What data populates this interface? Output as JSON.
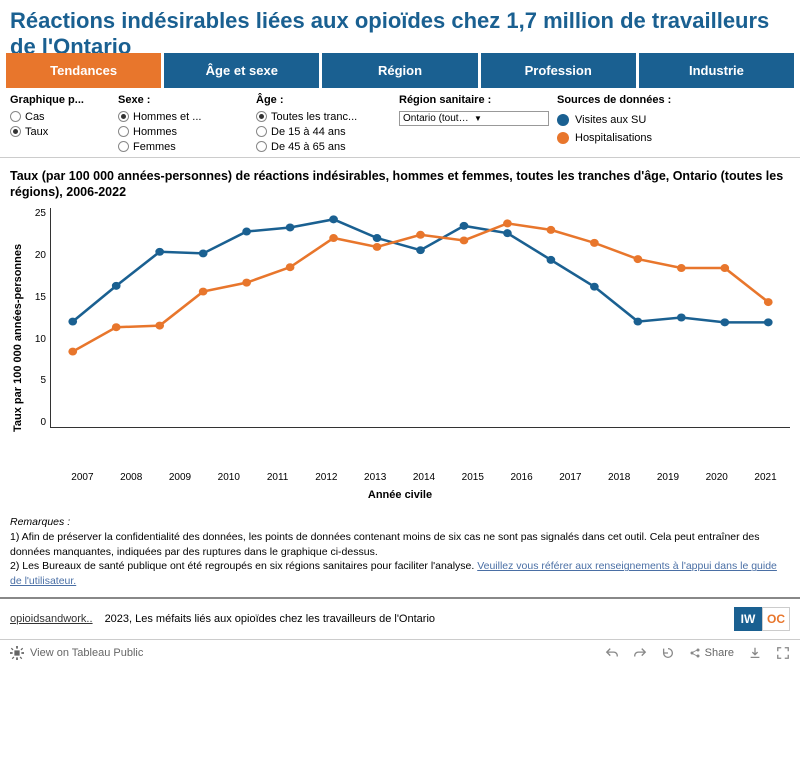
{
  "title": "Réactions indésirables liées aux opioïdes chez 1,7 million de travailleurs de l'Ontario",
  "tabs": [
    "Tendances",
    "Âge et sexe",
    "Région",
    "Profession",
    "Industrie"
  ],
  "active_tab": 0,
  "filters": {
    "graph": {
      "label": "Graphique p...",
      "options": [
        "Cas",
        "Taux"
      ],
      "selected": 1
    },
    "sex": {
      "label": "Sexe :",
      "options": [
        "Hommes et ...",
        "Hommes",
        "Femmes"
      ],
      "selected": 0
    },
    "age": {
      "label": "Âge :",
      "options": [
        "Toutes les tranc...",
        "De 15 à 44 ans",
        "De 45 à 65 ans"
      ],
      "selected": 0
    },
    "region": {
      "label": "Région sanitaire :",
      "value": "Ontario (toutes les ré..."
    }
  },
  "legend": {
    "title": "Sources de données :",
    "items": [
      {
        "label": "Visites aux SU",
        "color": "#1a6091"
      },
      {
        "label": "Hospitalisations",
        "color": "#e8762c"
      }
    ]
  },
  "chart": {
    "title": "Taux (par 100 000 années-personnes) de réactions indésirables, hommes et femmes, toutes les tranches d'âge, Ontario (toutes les régions), 2006-2022",
    "ylabel": "Taux par 100 000 années-personnes",
    "xlabel": "Année civile",
    "ylim": [
      0,
      27
    ],
    "yticks": [
      25,
      20,
      15,
      10,
      5,
      0
    ],
    "xticks": [
      "2007",
      "2008",
      "2009",
      "2010",
      "2011",
      "2012",
      "2013",
      "2014",
      "2015",
      "2016",
      "2017",
      "2018",
      "2019",
      "2020",
      "2021"
    ],
    "series": [
      {
        "name": "Visites aux SU",
        "color": "#1a6091",
        "y": [
          13.0,
          17.4,
          21.6,
          21.4,
          24.1,
          24.6,
          25.6,
          23.3,
          21.8,
          24.8,
          23.9,
          20.6,
          17.3,
          13.0,
          13.5,
          12.9,
          12.9
        ]
      },
      {
        "name": "Hospitalisations",
        "color": "#e8762c",
        "y": [
          9.3,
          12.3,
          12.5,
          16.7,
          17.8,
          19.7,
          23.3,
          22.2,
          23.7,
          23.0,
          25.1,
          24.3,
          22.7,
          20.7,
          19.6,
          19.6,
          15.4
        ]
      }
    ]
  },
  "remarks": {
    "title": "Remarques :",
    "n1": "1) Afin de préserver la confidentialité des données, les points de données contenant moins de six cas ne sont pas signalés dans cet outil. Cela peut entraîner des données manquantes, indiquées par des ruptures dans le graphique ci-dessus.",
    "n2a": "2) Les Bureaux de santé publique ont été regroupés en six régions sanitaires pour faciliter l'analyse. ",
    "n2link": "Veuillez vous référer aux renseignements à l'appui dans le guide de l'utilisateur."
  },
  "attrib": {
    "link": "opioidsandwork..",
    "text": "2023, Les méfaits liés aux opioïdes chez les travailleurs de l'Ontario"
  },
  "footer": {
    "view": "View on Tableau Public",
    "share": "Share"
  }
}
